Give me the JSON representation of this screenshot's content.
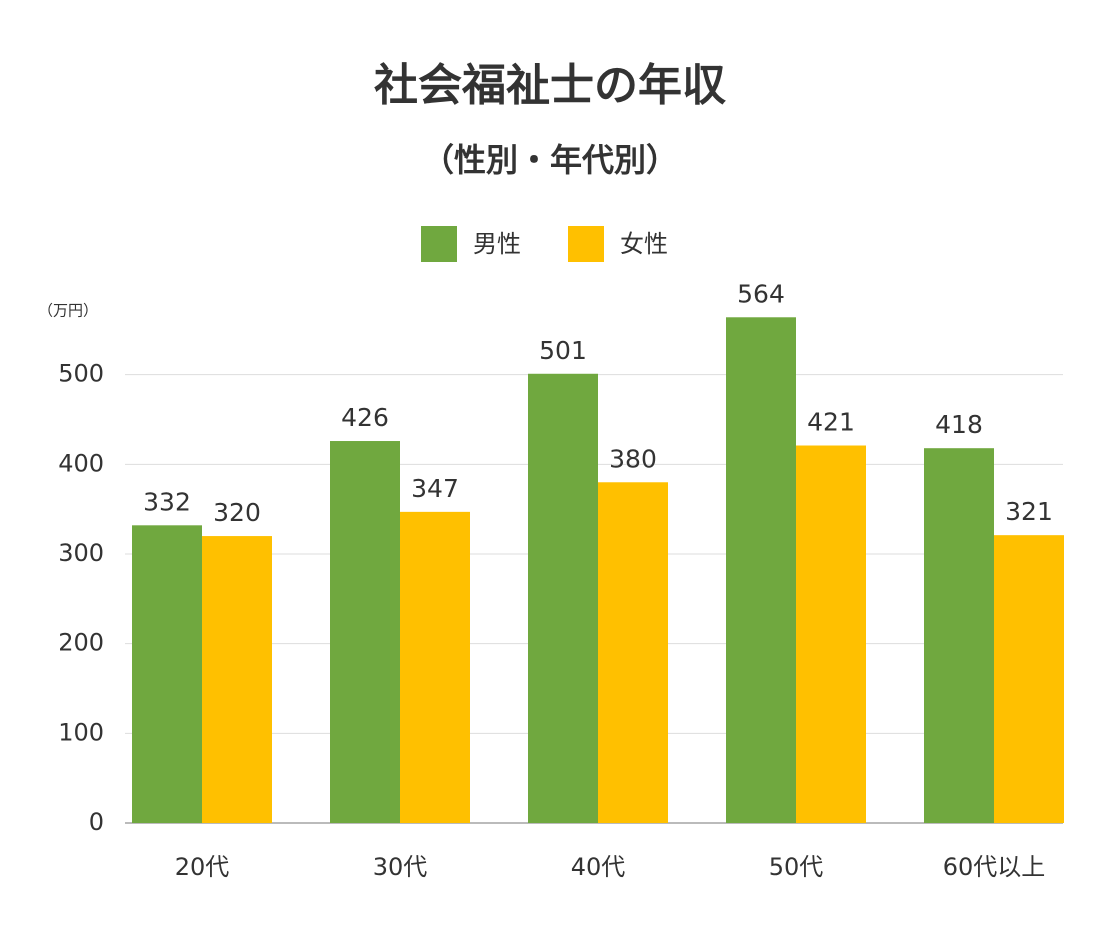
{
  "chart_data": {
    "type": "bar",
    "title": "社会福祉士の年収",
    "subtitle": "（性別・年代別）",
    "y_label": "（万円）",
    "categories": [
      "20代",
      "30代",
      "40代",
      "50代",
      "60代以上"
    ],
    "series": [
      {
        "name": "男性",
        "color": "#70a83f",
        "values": [
          332,
          426,
          501,
          564,
          418
        ]
      },
      {
        "name": "女性",
        "color": "#ffc000",
        "values": [
          320,
          347,
          380,
          421,
          321
        ]
      }
    ],
    "ylim": [
      0,
      600
    ],
    "yticks": [
      0,
      100,
      200,
      300,
      400,
      500
    ],
    "grid": true,
    "legend": "top"
  }
}
